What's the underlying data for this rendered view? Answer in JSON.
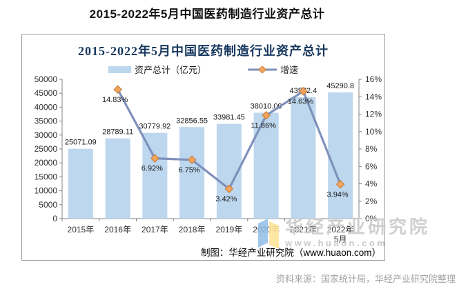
{
  "page": {
    "title": "2015-2022年5月中国医药制造行业资产总计",
    "source_note": "资料来源：国家统计局，华经产业研究院整理"
  },
  "chart": {
    "credit": "制图：华经产业研究院（www.huaon.com）"
  },
  "watermark": {
    "name": "华经产业研究院",
    "url": "www.huaon.com",
    "logo_icon": "huaon-logo"
  },
  "chart_data": {
    "type": "combo-bar-line",
    "title": "2015-2022年5月中国医药制造行业资产总计",
    "title_color": "#17375E",
    "categories": [
      "2015年",
      "2016年",
      "2017年",
      "2018年",
      "2019年",
      "2020年",
      "2021年",
      "2022年5月"
    ],
    "series": [
      {
        "name": "资产总计（亿元）",
        "type": "bar",
        "axis": "left",
        "color": "#BDD7EE",
        "values": [
          25071.09,
          28789.11,
          30779.92,
          32856.55,
          33981.45,
          38010.09,
          43572.4,
          45290.8
        ]
      },
      {
        "name": "增速",
        "type": "line",
        "axis": "right",
        "unit": "%",
        "line_color": "#8090BC",
        "marker_color": "#F2A45C",
        "marker_border": "#C8813F",
        "values": [
          null,
          14.83,
          6.92,
          6.75,
          3.42,
          11.86,
          14.63,
          3.94
        ]
      }
    ],
    "left_axis": {
      "min": 0,
      "max": 50000,
      "step": 5000
    },
    "right_axis": {
      "min": 0,
      "max": 16,
      "step": 2,
      "suffix": "%"
    },
    "legend_position": "top",
    "grid": false
  }
}
